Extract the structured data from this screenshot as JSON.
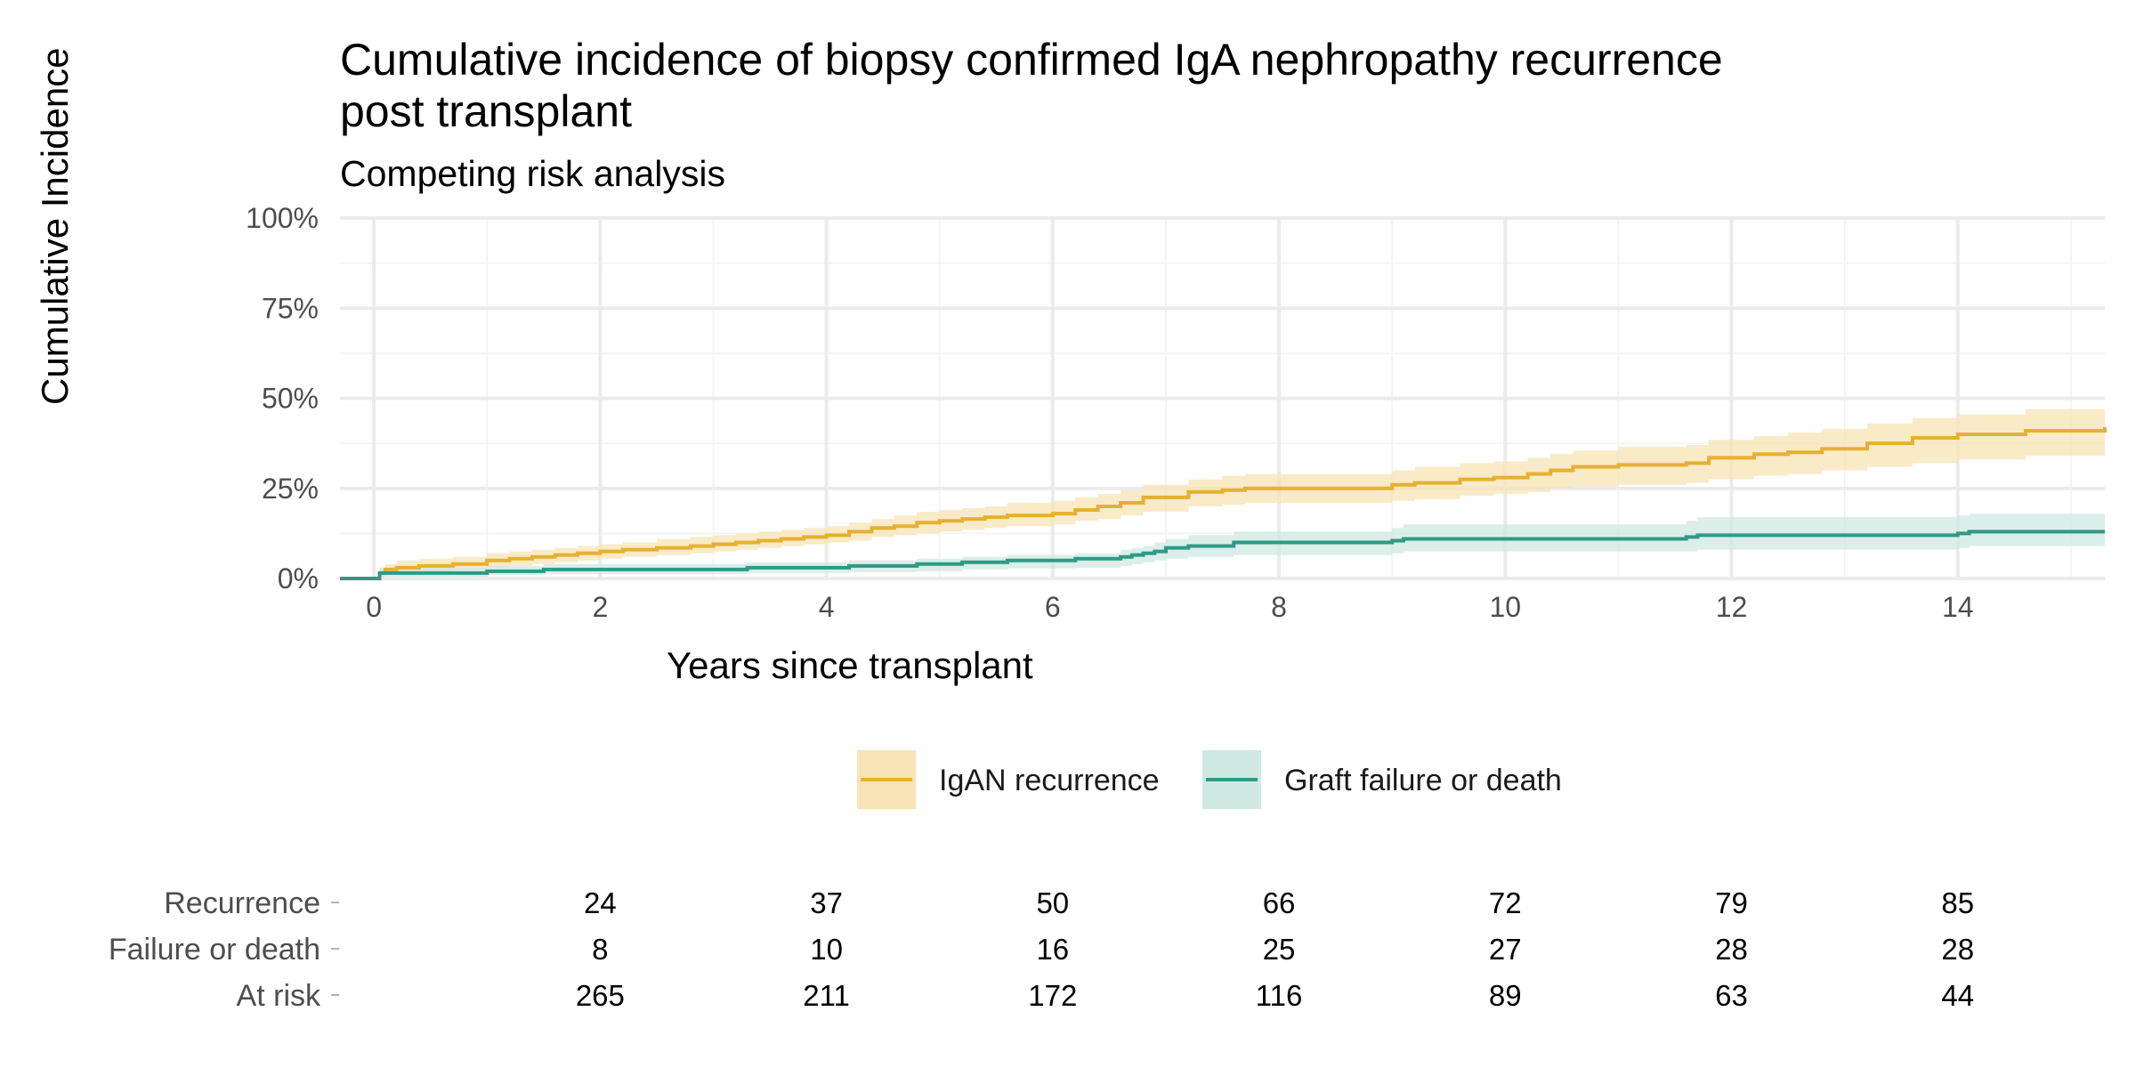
{
  "chart_data": {
    "type": "line",
    "title_line1": "Cumulative incidence of biopsy confirmed IgA nephropathy recurrence",
    "title_line2": "post transplant",
    "subtitle": "Competing risk analysis",
    "xlabel": "Years since transplant",
    "ylabel": "Cumulative Incidence",
    "xlim": [
      -0.3,
      15.3
    ],
    "ylim": [
      0,
      1
    ],
    "x_ticks": [
      0,
      2,
      4,
      6,
      8,
      10,
      12,
      14
    ],
    "y_ticks": [
      0,
      0.25,
      0.5,
      0.75,
      1.0
    ],
    "y_tick_labels": [
      "0%",
      "25%",
      "50%",
      "75%",
      "100%"
    ],
    "grid": true,
    "legend_position": "bottom",
    "series": [
      {
        "name": "IgAN recurrence",
        "color": "#E6B030",
        "band_color": "#F7E3B5",
        "x": [
          0,
          0.05,
          0.1,
          0.2,
          0.4,
          0.7,
          1.0,
          1.2,
          1.4,
          1.6,
          1.8,
          2.0,
          2.2,
          2.5,
          2.8,
          3.0,
          3.2,
          3.4,
          3.6,
          3.8,
          4.0,
          4.2,
          4.4,
          4.6,
          4.8,
          5.0,
          5.2,
          5.4,
          5.6,
          6.0,
          6.2,
          6.4,
          6.6,
          6.8,
          7.2,
          7.5,
          7.7,
          9.0,
          9.2,
          9.6,
          9.9,
          10.2,
          10.4,
          10.6,
          11.0,
          11.6,
          11.8,
          12.2,
          12.5,
          12.8,
          13.2,
          13.6,
          14.0,
          14.6,
          15.3
        ],
        "y": [
          0,
          0.015,
          0.025,
          0.03,
          0.035,
          0.04,
          0.05,
          0.055,
          0.06,
          0.065,
          0.07,
          0.075,
          0.08,
          0.085,
          0.09,
          0.095,
          0.1,
          0.105,
          0.11,
          0.115,
          0.12,
          0.13,
          0.14,
          0.145,
          0.155,
          0.16,
          0.165,
          0.17,
          0.175,
          0.18,
          0.19,
          0.2,
          0.21,
          0.225,
          0.24,
          0.245,
          0.25,
          0.26,
          0.265,
          0.275,
          0.28,
          0.29,
          0.3,
          0.31,
          0.315,
          0.32,
          0.335,
          0.345,
          0.35,
          0.36,
          0.375,
          0.39,
          0.4,
          0.41,
          0.42
        ],
        "lower": [
          0,
          0.005,
          0.01,
          0.015,
          0.02,
          0.025,
          0.03,
          0.035,
          0.04,
          0.045,
          0.05,
          0.055,
          0.06,
          0.065,
          0.07,
          0.075,
          0.08,
          0.085,
          0.09,
          0.095,
          0.1,
          0.105,
          0.115,
          0.12,
          0.125,
          0.13,
          0.135,
          0.14,
          0.145,
          0.15,
          0.16,
          0.165,
          0.175,
          0.185,
          0.2,
          0.205,
          0.21,
          0.215,
          0.22,
          0.23,
          0.235,
          0.24,
          0.25,
          0.255,
          0.26,
          0.265,
          0.275,
          0.285,
          0.29,
          0.3,
          0.31,
          0.32,
          0.33,
          0.34,
          0.35
        ],
        "upper": [
          0,
          0.03,
          0.04,
          0.05,
          0.055,
          0.06,
          0.07,
          0.075,
          0.08,
          0.085,
          0.09,
          0.095,
          0.1,
          0.11,
          0.115,
          0.12,
          0.125,
          0.13,
          0.135,
          0.14,
          0.145,
          0.155,
          0.165,
          0.175,
          0.185,
          0.19,
          0.195,
          0.2,
          0.21,
          0.215,
          0.225,
          0.235,
          0.245,
          0.26,
          0.275,
          0.285,
          0.29,
          0.3,
          0.31,
          0.32,
          0.325,
          0.335,
          0.345,
          0.355,
          0.365,
          0.37,
          0.385,
          0.395,
          0.405,
          0.415,
          0.43,
          0.445,
          0.455,
          0.47,
          0.49
        ]
      },
      {
        "name": "Graft failure or death",
        "color": "#2E9A85",
        "band_color": "#CFE8E1",
        "x": [
          -0.3,
          0,
          0.05,
          1.0,
          1.5,
          3.3,
          4.2,
          4.8,
          5.2,
          5.6,
          6.2,
          6.6,
          6.7,
          6.8,
          6.9,
          7.0,
          7.2,
          7.6,
          9.0,
          9.1,
          11.6,
          11.7,
          14.0,
          14.1,
          15.3
        ],
        "y": [
          0,
          0,
          0.015,
          0.02,
          0.025,
          0.03,
          0.035,
          0.04,
          0.045,
          0.05,
          0.055,
          0.06,
          0.065,
          0.07,
          0.075,
          0.085,
          0.09,
          0.1,
          0.105,
          0.11,
          0.115,
          0.12,
          0.125,
          0.13,
          0.13
        ],
        "lower": [
          0,
          0,
          0.005,
          0.01,
          0.012,
          0.015,
          0.018,
          0.02,
          0.025,
          0.028,
          0.03,
          0.035,
          0.04,
          0.045,
          0.05,
          0.055,
          0.06,
          0.065,
          0.07,
          0.075,
          0.075,
          0.08,
          0.085,
          0.09,
          0.09
        ],
        "upper": [
          0,
          0,
          0.03,
          0.035,
          0.04,
          0.045,
          0.05,
          0.055,
          0.06,
          0.065,
          0.07,
          0.08,
          0.085,
          0.09,
          0.1,
          0.11,
          0.12,
          0.13,
          0.14,
          0.15,
          0.16,
          0.17,
          0.175,
          0.18,
          0.18
        ]
      }
    ],
    "risk_table": {
      "x": [
        2,
        4,
        6,
        8,
        10,
        12,
        14
      ],
      "rows": [
        {
          "label": "Recurrence",
          "values": [
            "24",
            "37",
            "50",
            "66",
            "72",
            "79",
            "85"
          ]
        },
        {
          "label": "Failure or death",
          "values": [
            "8",
            "10",
            "16",
            "25",
            "27",
            "28",
            "28"
          ]
        },
        {
          "label": "At risk",
          "values": [
            "265",
            "211",
            "172",
            "116",
            "89",
            "63",
            "44"
          ]
        }
      ]
    }
  }
}
